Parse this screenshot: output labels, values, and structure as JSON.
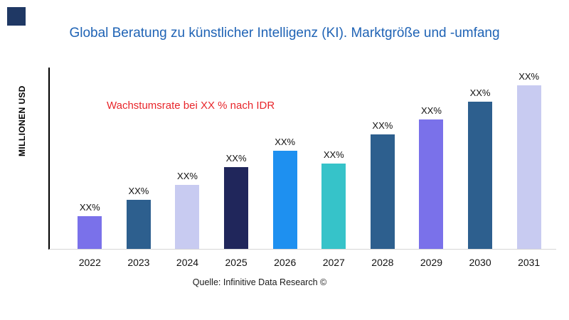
{
  "page": {
    "background": "#ffffff",
    "logo_color": "#1f3864"
  },
  "chart_data": {
    "type": "bar",
    "title": "Global Beratung zu künstlicher Intelligenz (KI). Marktgröße und -umfang",
    "title_color": "#1f63b5",
    "ylabel": "MILLIONEN USD",
    "xlabel": "",
    "annotation": "Wachstumsrate bei XX % nach IDR",
    "annotation_color": "#e8262b",
    "categories": [
      "2022",
      "2023",
      "2024",
      "2025",
      "2026",
      "2027",
      "2028",
      "2029",
      "2030",
      "2031"
    ],
    "values": [
      20,
      30,
      39,
      50,
      60,
      52,
      70,
      79,
      90,
      100
    ],
    "ylim": [
      0,
      100
    ],
    "grid": false,
    "legend": false,
    "bar_labels": [
      "XX%",
      "XX%",
      "XX%",
      "XX%",
      "XX%",
      "XX%",
      "XX%",
      "XX%",
      "XX%",
      "XX%"
    ],
    "bar_colors": [
      "#7a71ea",
      "#2d5f8e",
      "#c8cbf1",
      "#20265b",
      "#1e90f0",
      "#36c3c9",
      "#2d5f8e",
      "#7a71ea",
      "#2d5f8e",
      "#c8cbf1"
    ],
    "source": "Quelle: Infinitive Data Research ©"
  }
}
